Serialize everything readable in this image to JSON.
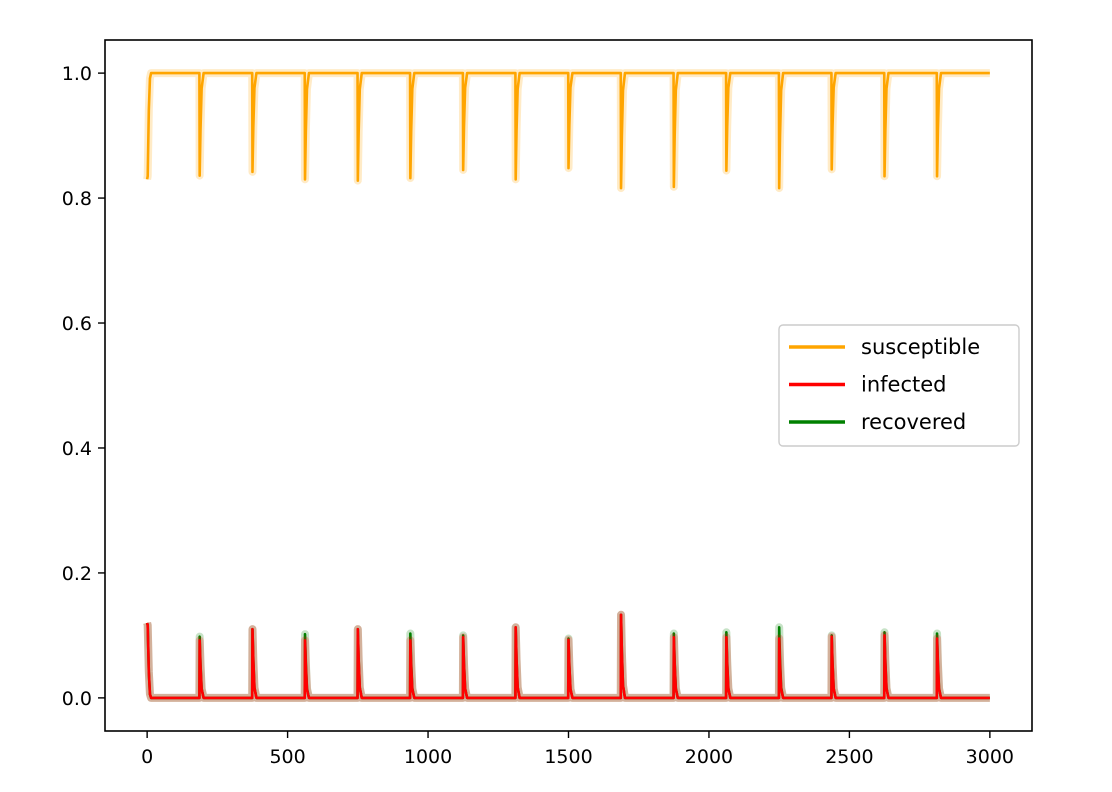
{
  "chart_data": {
    "type": "line",
    "title": "",
    "xlabel": "",
    "ylabel": "",
    "xlim": [
      -150,
      3150
    ],
    "ylim": [
      -0.053,
      1.053
    ],
    "xticks": [
      0,
      500,
      1000,
      1500,
      2000,
      2500,
      3000
    ],
    "yticks": [
      0.0,
      0.2,
      0.4,
      0.6,
      0.8,
      1.0
    ],
    "xtick_labels": [
      "0",
      "500",
      "1000",
      "1500",
      "2000",
      "2500",
      "3000"
    ],
    "ytick_labels": [
      "0.0",
      "0.2",
      "0.4",
      "0.6",
      "0.8",
      "1.0"
    ],
    "grid": false,
    "legend_position": "center-right",
    "outbreak_times": [
      0,
      187,
      375,
      562,
      750,
      937,
      1125,
      1312,
      1500,
      1687,
      1875,
      2062,
      2250,
      2437,
      2625,
      2812
    ],
    "x_end": 3000,
    "series": [
      {
        "name": "susceptible",
        "color": "#ffa500",
        "baseline": 1.0,
        "peak_values": [
          0.83,
          0.836,
          0.842,
          0.83,
          0.828,
          0.832,
          0.845,
          0.83,
          0.848,
          0.816,
          0.818,
          0.844,
          0.816,
          0.846,
          0.835,
          0.835
        ]
      },
      {
        "name": "infected",
        "color": "#ff0000",
        "baseline": 0.0,
        "peak_values": [
          0.12,
          0.092,
          0.11,
          0.092,
          0.11,
          0.092,
          0.097,
          0.113,
          0.093,
          0.133,
          0.097,
          0.097,
          0.095,
          0.098,
          0.1,
          0.095
        ]
      },
      {
        "name": "recovered",
        "color": "#008000",
        "baseline": 0.0,
        "peak_values": [
          0.12,
          0.098,
          0.11,
          0.102,
          0.11,
          0.103,
          0.1,
          0.113,
          0.095,
          0.133,
          0.103,
          0.105,
          0.113,
          0.1,
          0.105,
          0.103
        ]
      }
    ]
  }
}
